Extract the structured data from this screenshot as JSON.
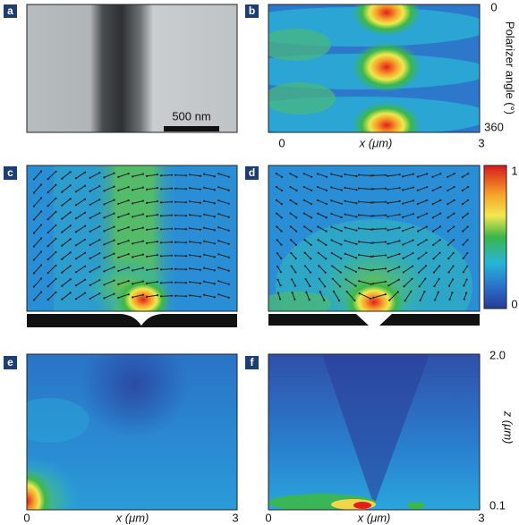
{
  "panels": [
    {
      "label": "a",
      "scale_bar": "500 nm"
    },
    {
      "label": "b",
      "y_axis": {
        "title": "Polarizer angle (°)",
        "ticks": [
          0,
          360
        ]
      },
      "x_axis": {
        "title": "x (μm)",
        "ticks": [
          0,
          3
        ]
      }
    },
    {
      "label": "c"
    },
    {
      "label": "d",
      "colorbar": {
        "ticks": [
          1,
          0
        ]
      }
    },
    {
      "label": "e",
      "x_axis": {
        "title": "x (μm)",
        "ticks": [
          0,
          3
        ]
      }
    },
    {
      "label": "f",
      "x_axis": {
        "title": "x (μm)",
        "ticks": [
          0,
          3
        ]
      },
      "y_axis": {
        "title": "z (μm)",
        "ticks": [
          "2.0",
          0.1
        ]
      }
    }
  ]
}
